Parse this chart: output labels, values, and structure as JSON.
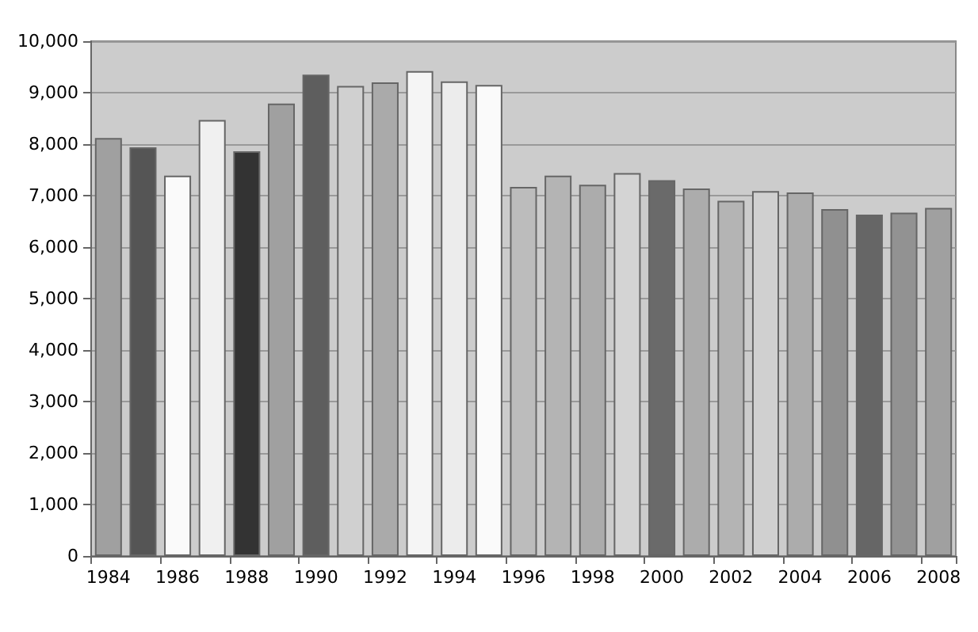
{
  "chart_data": {
    "type": "bar",
    "categories": [
      "1984",
      null,
      "1986",
      null,
      "1988",
      null,
      "1990",
      null,
      "1992",
      null,
      "1994",
      null,
      "1996",
      null,
      "1998",
      null,
      "2000",
      null,
      "2002",
      null,
      "2004",
      null,
      "2006",
      null,
      "2008"
    ],
    "values": [
      8120,
      7940,
      7390,
      8470,
      7860,
      8790,
      9350,
      9130,
      9200,
      9420,
      9220,
      9150,
      7170,
      7390,
      7210,
      7440,
      7300,
      7140,
      6900,
      7090,
      7060,
      6740,
      6630,
      6670,
      6760
    ],
    "colors": [
      "#a0a0a0",
      "#555555",
      "#fafafa",
      "#f0f0f0",
      "#333333",
      "#a0a0a0",
      "#5e5e5e",
      "#d0d0d0",
      "#aaaaaa",
      "#f5f5f5",
      "#ececec",
      "#fafafa",
      "#bcbcbc",
      "#b4b4b4",
      "#acacac",
      "#d4d4d4",
      "#6a6a6a",
      "#acacac",
      "#b4b4b4",
      "#d0d0d0",
      "#acacac",
      "#909090",
      "#666666",
      "#929292",
      "#a0a0a0"
    ],
    "ylim": [
      0,
      10000
    ],
    "yticks": [
      {
        "value": 0,
        "label": "0"
      },
      {
        "value": 1000,
        "label": "1,000"
      },
      {
        "value": 2000,
        "label": "2,000"
      },
      {
        "value": 3000,
        "label": "3,000"
      },
      {
        "value": 4000,
        "label": "4,000"
      },
      {
        "value": 5000,
        "label": "5,000"
      },
      {
        "value": 6000,
        "label": "6,000"
      },
      {
        "value": 7000,
        "label": "7,000"
      },
      {
        "value": 8000,
        "label": "8,000"
      },
      {
        "value": 9000,
        "label": "9,000"
      },
      {
        "value": 10000,
        "label": "10,000"
      }
    ],
    "grid": "y"
  }
}
